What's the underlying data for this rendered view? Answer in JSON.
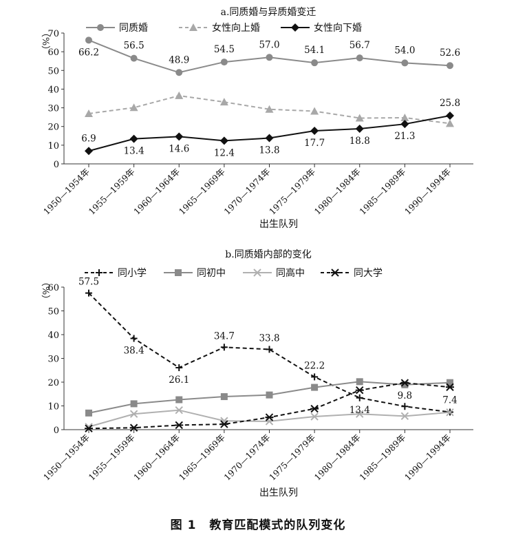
{
  "figure": {
    "caption_number": "图 1",
    "caption_text": "教育匹配模式的队列变化"
  },
  "chart_data": [
    {
      "type": "line",
      "title": "a.同质婚与异质婚变迁",
      "xlabel": "出生队列",
      "ylabel": "（%）",
      "ylim": [
        0,
        70
      ],
      "yticks": [
        0,
        10,
        20,
        30,
        40,
        50,
        60,
        70
      ],
      "categories": [
        "1950—1954年",
        "1955—1959年",
        "1960—1964年",
        "1965—1969年",
        "1970—1974年",
        "1975—1979年",
        "1980—1984年",
        "1985—1989年",
        "1990—1994年"
      ],
      "legend_position": "top-left",
      "series": [
        {
          "name": "同质婚",
          "marker": "circle",
          "line": "solid",
          "color": "#8a8a8a",
          "values": [
            66.2,
            56.5,
            48.9,
            54.5,
            57.0,
            54.1,
            56.7,
            54.0,
            52.6
          ],
          "labels": [
            "66.2",
            "56.5",
            "48.9",
            "54.5",
            "57.0",
            "54.1",
            "56.7",
            "54.0",
            "52.6"
          ]
        },
        {
          "name": "女性向上婚",
          "marker": "triangle",
          "line": "dashed",
          "color": "#a8a8a8",
          "values": [
            26.9,
            30.1,
            36.5,
            33.1,
            29.2,
            28.2,
            24.5,
            24.7,
            21.6
          ],
          "labels": []
        },
        {
          "name": "女性向下婚",
          "marker": "diamond",
          "line": "solid",
          "color": "#111111",
          "values": [
            6.9,
            13.4,
            14.6,
            12.4,
            13.8,
            17.7,
            18.8,
            21.3,
            25.8
          ],
          "labels": [
            "6.9",
            "13.4",
            "14.6",
            "12.4",
            "13.8",
            "17.7",
            "18.8",
            "21.3",
            "25.8"
          ]
        }
      ]
    },
    {
      "type": "line",
      "title": "b.同质婚内部的变化",
      "xlabel": "出生队列",
      "ylabel": "（%）",
      "ylim": [
        0,
        60
      ],
      "yticks": [
        0,
        10,
        20,
        30,
        40,
        50,
        60
      ],
      "categories": [
        "1950—1954年",
        "1955—1959年",
        "1960—1964年",
        "1965—1969年",
        "1970—1974年",
        "1975—1979年",
        "1980—1984年",
        "1985—1989年",
        "1990—1994年"
      ],
      "legend_position": "top-left",
      "series": [
        {
          "name": "同小学",
          "marker": "plus",
          "line": "dashed",
          "color": "#111111",
          "values": [
            57.5,
            38.4,
            26.1,
            34.7,
            33.8,
            22.2,
            13.4,
            9.8,
            7.4
          ],
          "labels": [
            "57.5",
            "38.4",
            "26.1",
            "34.7",
            "33.8",
            "22.2",
            "13.4",
            "9.8",
            "7.4"
          ]
        },
        {
          "name": "同初中",
          "marker": "square",
          "line": "solid",
          "color": "#8a8a8a",
          "values": [
            7.0,
            10.9,
            12.6,
            13.9,
            14.6,
            17.8,
            20.2,
            18.9,
            19.8
          ],
          "labels": []
        },
        {
          "name": "同高中",
          "marker": "x",
          "line": "solid",
          "color": "#b0b0b0",
          "values": [
            1.2,
            6.6,
            8.2,
            3.7,
            3.5,
            5.5,
            6.6,
            5.7,
            7.3
          ],
          "labels": []
        },
        {
          "name": "同大学",
          "marker": "asterisk",
          "line": "dashed",
          "color": "#111111",
          "values": [
            0.5,
            0.8,
            1.9,
            2.3,
            5.2,
            8.8,
            16.6,
            19.7,
            17.9
          ],
          "labels": []
        }
      ]
    }
  ]
}
